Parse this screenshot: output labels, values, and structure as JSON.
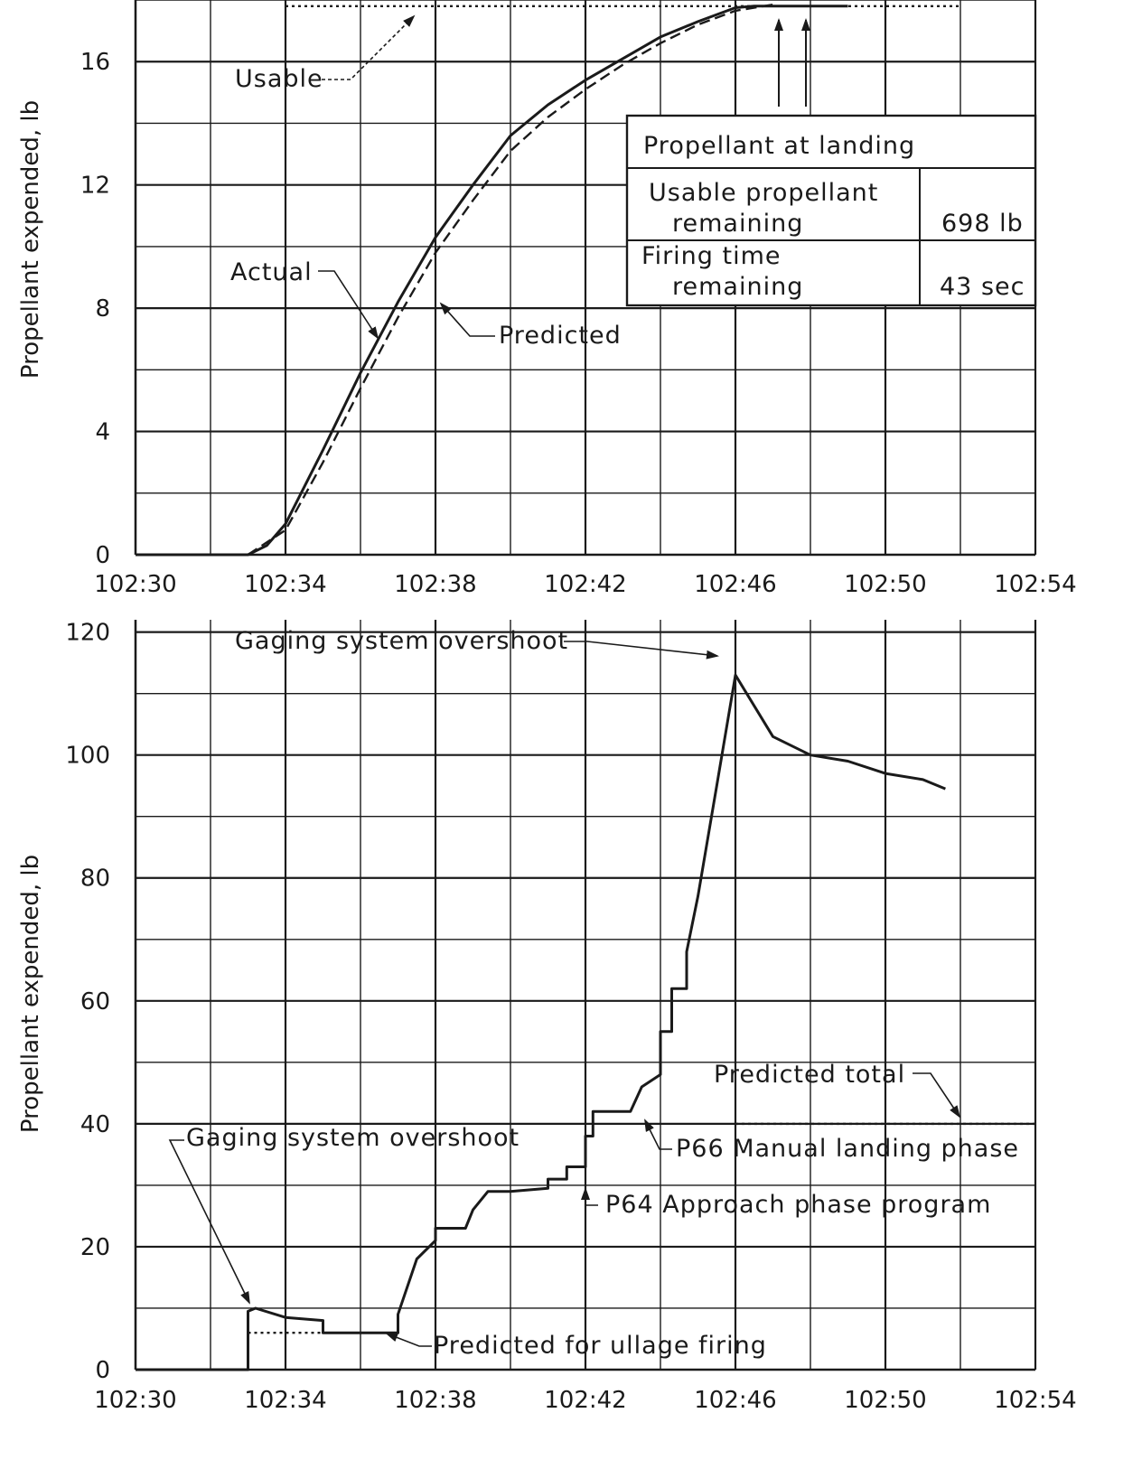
{
  "chart_data": [
    {
      "type": "line",
      "xlabel": "",
      "ylabel": "Propellant expended, lb",
      "x_ticks": [
        "102:30",
        "102:34",
        "102:38",
        "102:42",
        "102:46",
        "102:50",
        "102:54"
      ],
      "y_ticks": [
        "0",
        "4",
        "8",
        "12",
        "16"
      ],
      "xlim": [
        "102:30",
        "102:54"
      ],
      "ylim": [
        0,
        18
      ],
      "grid": true,
      "series": [
        {
          "name": "Actual",
          "style": "solid",
          "x": [
            "102:30",
            "102:33",
            "102:33.5",
            "102:34",
            "102:35",
            "102:36",
            "102:37",
            "102:38",
            "102:39",
            "102:40",
            "102:41",
            "102:42",
            "102:43",
            "102:44",
            "102:45",
            "102:46",
            "102:46.5",
            "102:49"
          ],
          "y": [
            0,
            0,
            0.3,
            1.0,
            3.4,
            5.9,
            8.2,
            10.3,
            12.0,
            13.6,
            14.6,
            15.4,
            16.1,
            16.8,
            17.3,
            17.75,
            17.8,
            17.8
          ]
        },
        {
          "name": "Predicted",
          "style": "dashed",
          "x": [
            "102:33",
            "102:34",
            "102:35",
            "102:36",
            "102:37",
            "102:38",
            "102:39",
            "102:40",
            "102:41",
            "102:42",
            "102:43",
            "102:44",
            "102:45",
            "102:46",
            "102:47"
          ],
          "y": [
            0,
            0.8,
            3.0,
            5.4,
            7.7,
            9.8,
            11.5,
            13.1,
            14.2,
            15.1,
            15.9,
            16.6,
            17.2,
            17.65,
            17.85
          ]
        },
        {
          "name": "Usable",
          "style": "dotted",
          "x": [
            "102:34",
            "102:52"
          ],
          "y": [
            17.8,
            17.8
          ]
        }
      ],
      "annotations": [
        "Usable",
        "Actual",
        "Predicted"
      ],
      "table": {
        "title": "Propellant at landing",
        "rows": [
          {
            "label": "Usable propellant remaining",
            "label_line1": "Usable propellant",
            "label_line2": "remaining",
            "value": "698 lb"
          },
          {
            "label": "Firing time remaining",
            "label_line1": "Firing time",
            "label_line2": "remaining",
            "value": "43 sec"
          }
        ]
      }
    },
    {
      "type": "line",
      "xlabel": "",
      "ylabel": "Propellant expended, lb",
      "x_ticks": [
        "102:30",
        "102:34",
        "102:38",
        "102:42",
        "102:46",
        "102:50",
        "102:54"
      ],
      "y_ticks": [
        "0",
        "20",
        "40",
        "60",
        "80",
        "100",
        "120"
      ],
      "xlim": [
        "102:30",
        "102:54"
      ],
      "ylim": [
        0,
        120
      ],
      "grid": true,
      "series": [
        {
          "name": "Gaging system",
          "style": "solid",
          "x": [
            "102:30",
            "102:33",
            "102:33",
            "102:33.2",
            "102:34",
            "102:35",
            "102:35",
            "102:37",
            "102:37",
            "102:37.5",
            "102:38",
            "102:38",
            "102:38.8",
            "102:39",
            "102:39.4",
            "102:40",
            "102:41",
            "102:41",
            "102:41.5",
            "102:41.5",
            "102:42",
            "102:42",
            "102:42.2",
            "102:42.2",
            "102:43.2",
            "102:43.5",
            "102:44",
            "102:44",
            "102:44.3",
            "102:44.3",
            "102:44.7",
            "102:44.7",
            "102:45",
            "102:45.5",
            "102:46",
            "102:47",
            "102:48",
            "102:49",
            "102:50",
            "102:51",
            "102:51.6"
          ],
          "y": [
            0,
            0,
            9.5,
            10,
            8.5,
            8,
            6,
            6,
            9,
            18,
            21,
            23,
            23,
            26,
            29,
            29,
            29.5,
            31,
            31,
            33,
            33,
            38,
            38,
            42,
            42,
            46,
            48,
            55,
            55,
            62,
            62,
            68,
            77,
            95,
            113,
            103,
            100,
            99,
            97,
            96,
            94.5
          ]
        },
        {
          "name": "Predicted for ullage firing",
          "style": "dotted",
          "x": [
            "102:33",
            "102:37"
          ],
          "y": [
            6,
            6
          ]
        },
        {
          "name": "Predicted total",
          "style": "dotted",
          "x": [
            "102:46",
            "102:54"
          ],
          "y": [
            40,
            40
          ]
        }
      ],
      "annotations": [
        "Gaging system overshoot",
        "Gaging system overshoot",
        "Predicted total",
        "P66  Manual landing phase",
        "P64  Approach phase program",
        "Predicted for ullage firing"
      ]
    }
  ]
}
